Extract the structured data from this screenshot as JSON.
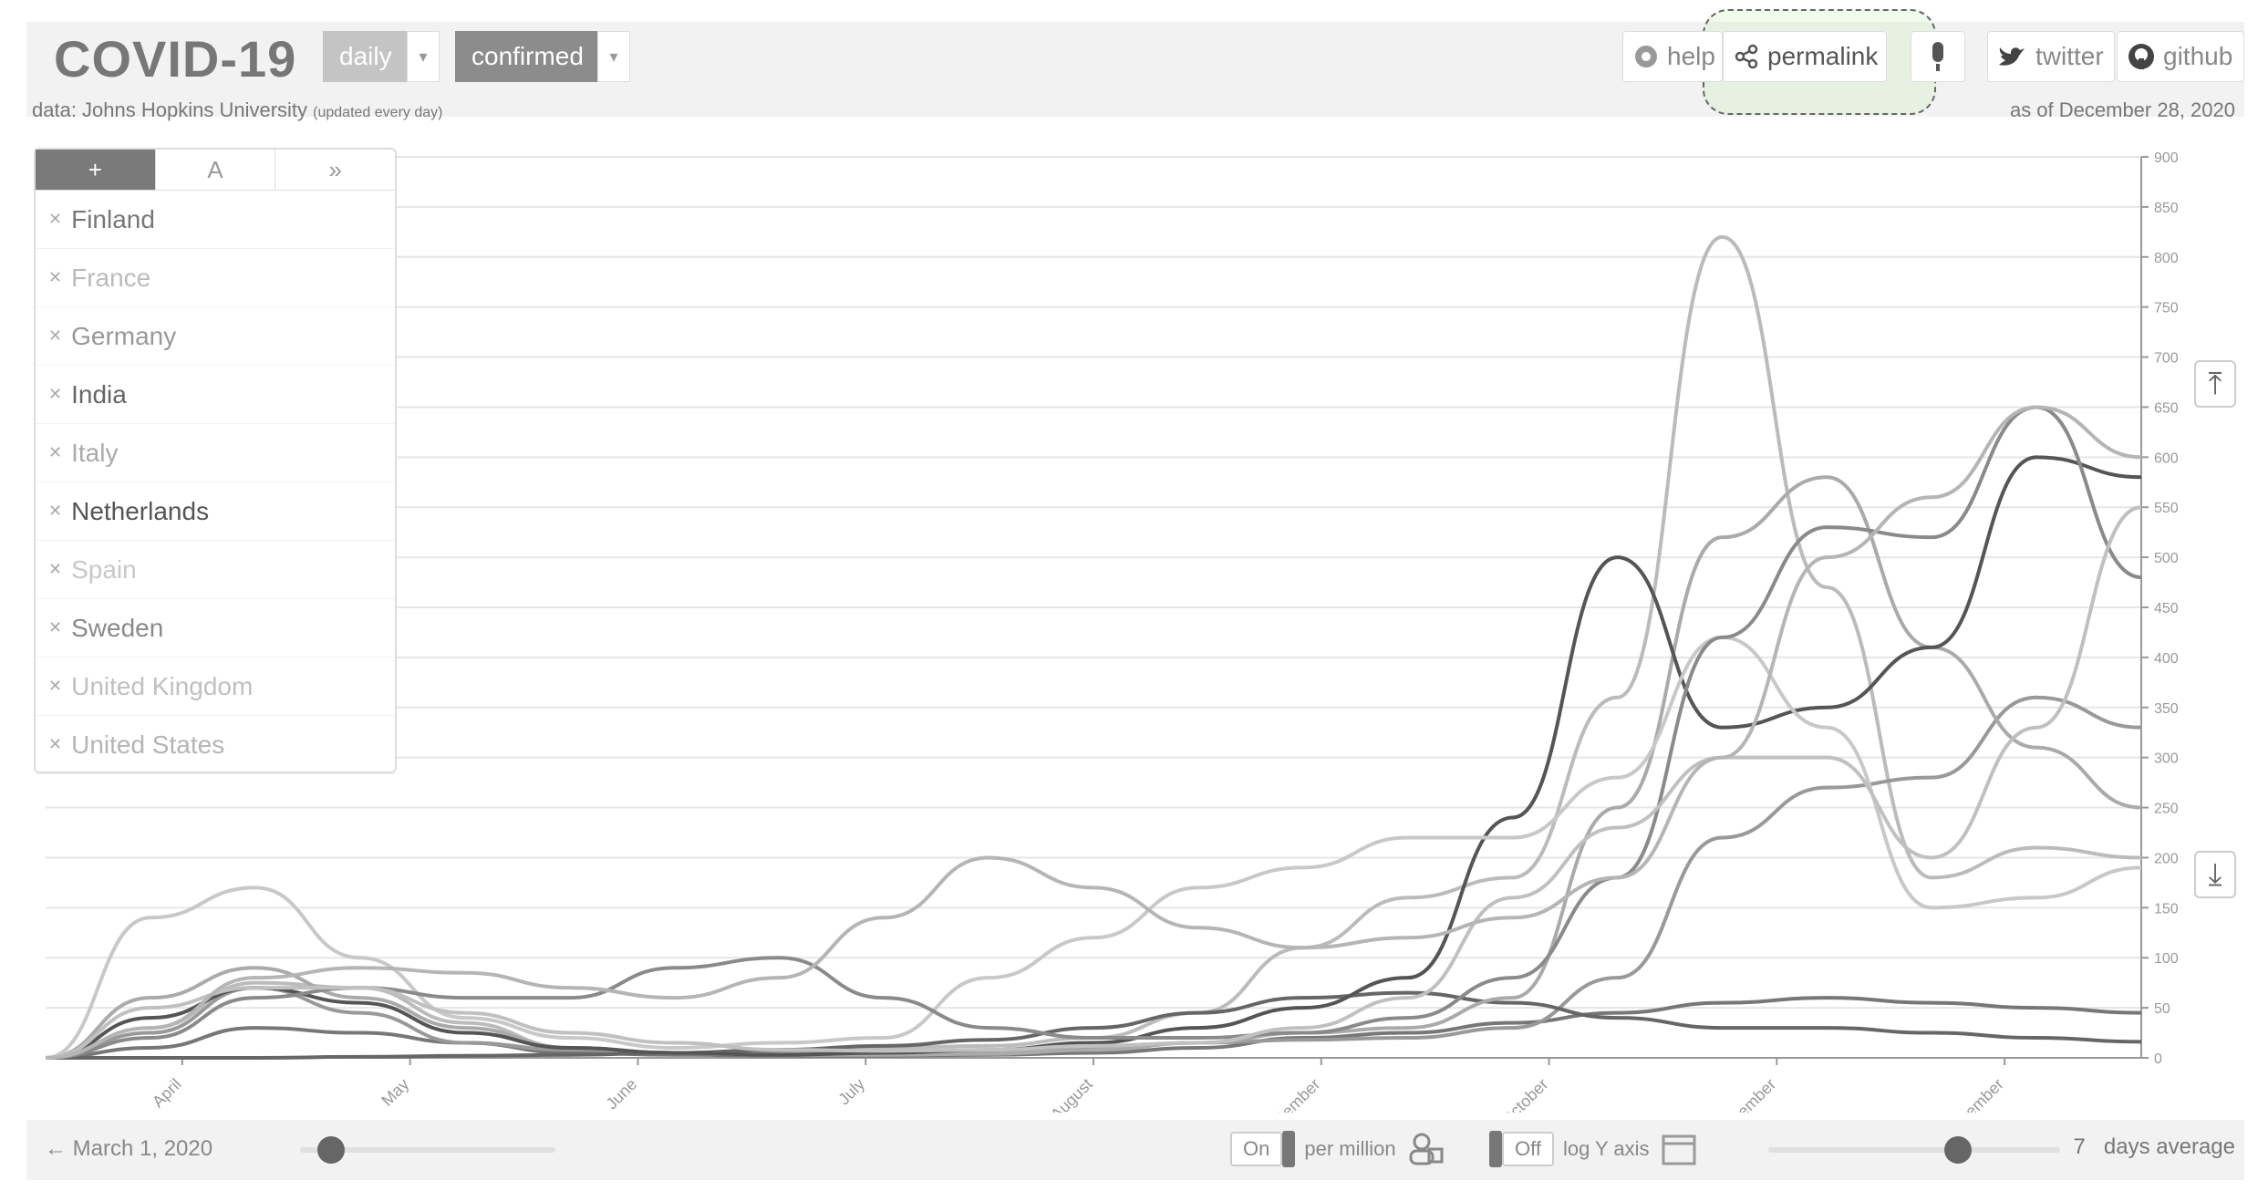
{
  "header": {
    "title": "COVID-19",
    "interval_select": "daily",
    "metric_select": "confirmed",
    "help_label": "help",
    "permalink_label": "permalink",
    "twitter_label": "twitter",
    "github_label": "github"
  },
  "source": {
    "prefix": "data: Johns Hopkins University",
    "note": "(updated every day)",
    "as_of": "as of December 28, 2020"
  },
  "sidebar": {
    "tabs": [
      "+",
      "A",
      "»"
    ],
    "countries": [
      {
        "name": "Finland",
        "color": "#777777"
      },
      {
        "name": "France",
        "color": "#bbbbbb"
      },
      {
        "name": "Germany",
        "color": "#999999"
      },
      {
        "name": "India",
        "color": "#666666"
      },
      {
        "name": "Italy",
        "color": "#aaaaaa"
      },
      {
        "name": "Netherlands",
        "color": "#555555"
      },
      {
        "name": "Spain",
        "color": "#c8c8c8"
      },
      {
        "name": "Sweden",
        "color": "#8a8a8a"
      },
      {
        "name": "United Kingdom",
        "color": "#c0c0c0"
      },
      {
        "name": "United States",
        "color": "#b5b5b5"
      }
    ]
  },
  "controls": {
    "start_date": "March 1, 2020",
    "start_slider": 0.12,
    "per_million_state": "On",
    "per_million_label": "per million",
    "log_state": "Off",
    "log_label": "log Y axis",
    "avg_value": "7",
    "avg_label": "days average",
    "avg_slider": 0.65
  },
  "chart_data": {
    "type": "line",
    "title": "",
    "xlabel": "",
    "ylabel": "",
    "x_tick_labels": [
      "April",
      "May",
      "June",
      "July",
      "August",
      "September",
      "October",
      "November",
      "December"
    ],
    "y_tick_labels": [
      "0",
      "50",
      "100",
      "150",
      "200",
      "250",
      "300",
      "350",
      "400",
      "450",
      "500",
      "550",
      "600",
      "650",
      "700",
      "750",
      "800",
      "850",
      "900"
    ],
    "ylim": [
      0,
      900
    ],
    "grid": true,
    "x_points": [
      "Mar 1",
      "Mar 15",
      "Apr 1",
      "Apr 15",
      "May 1",
      "May 15",
      "Jun 1",
      "Jun 15",
      "Jul 1",
      "Jul 15",
      "Aug 1",
      "Aug 15",
      "Sep 1",
      "Sep 15",
      "Oct 1",
      "Oct 15",
      "Nov 1",
      "Nov 15",
      "Dec 1",
      "Dec 15",
      "Dec 28"
    ],
    "series": [
      {
        "name": "Finland",
        "values": [
          0,
          10,
          30,
          25,
          15,
          5,
          3,
          2,
          2,
          3,
          5,
          10,
          20,
          25,
          35,
          45,
          55,
          60,
          55,
          50,
          45
        ]
      },
      {
        "name": "France",
        "values": [
          0,
          30,
          75,
          70,
          35,
          10,
          5,
          8,
          10,
          12,
          20,
          45,
          110,
          160,
          180,
          360,
          820,
          470,
          180,
          210,
          200
        ]
      },
      {
        "name": "Germany",
        "values": [
          0,
          25,
          70,
          45,
          15,
          8,
          5,
          5,
          5,
          6,
          10,
          15,
          18,
          20,
          30,
          80,
          220,
          270,
          280,
          360,
          330
        ]
      },
      {
        "name": "India",
        "values": [
          0,
          0,
          0,
          1,
          2,
          3,
          5,
          8,
          12,
          18,
          30,
          45,
          60,
          65,
          55,
          40,
          30,
          30,
          25,
          20,
          16
        ]
      },
      {
        "name": "Italy",
        "values": [
          0,
          60,
          90,
          60,
          30,
          10,
          5,
          3,
          3,
          4,
          8,
          15,
          25,
          30,
          60,
          250,
          520,
          580,
          410,
          310,
          250
        ]
      },
      {
        "name": "Netherlands",
        "values": [
          0,
          40,
          70,
          55,
          25,
          10,
          5,
          3,
          5,
          8,
          15,
          30,
          50,
          80,
          240,
          500,
          330,
          350,
          410,
          600,
          580
        ]
      },
      {
        "name": "Spain",
        "values": [
          0,
          140,
          170,
          100,
          40,
          20,
          10,
          15,
          20,
          80,
          120,
          170,
          190,
          220,
          220,
          280,
          420,
          330,
          150,
          160,
          190
        ]
      },
      {
        "name": "Sweden",
        "values": [
          0,
          20,
          60,
          70,
          60,
          60,
          90,
          100,
          60,
          30,
          20,
          20,
          25,
          40,
          80,
          180,
          420,
          530,
          520,
          650,
          480
        ]
      },
      {
        "name": "United Kingdom",
        "values": [
          0,
          50,
          70,
          70,
          45,
          25,
          15,
          8,
          7,
          8,
          12,
          15,
          30,
          60,
          160,
          230,
          300,
          300,
          200,
          330,
          550
        ]
      },
      {
        "name": "United States",
        "values": [
          0,
          30,
          80,
          90,
          85,
          70,
          60,
          80,
          140,
          200,
          170,
          130,
          110,
          120,
          140,
          180,
          300,
          500,
          560,
          650,
          600
        ]
      }
    ]
  }
}
